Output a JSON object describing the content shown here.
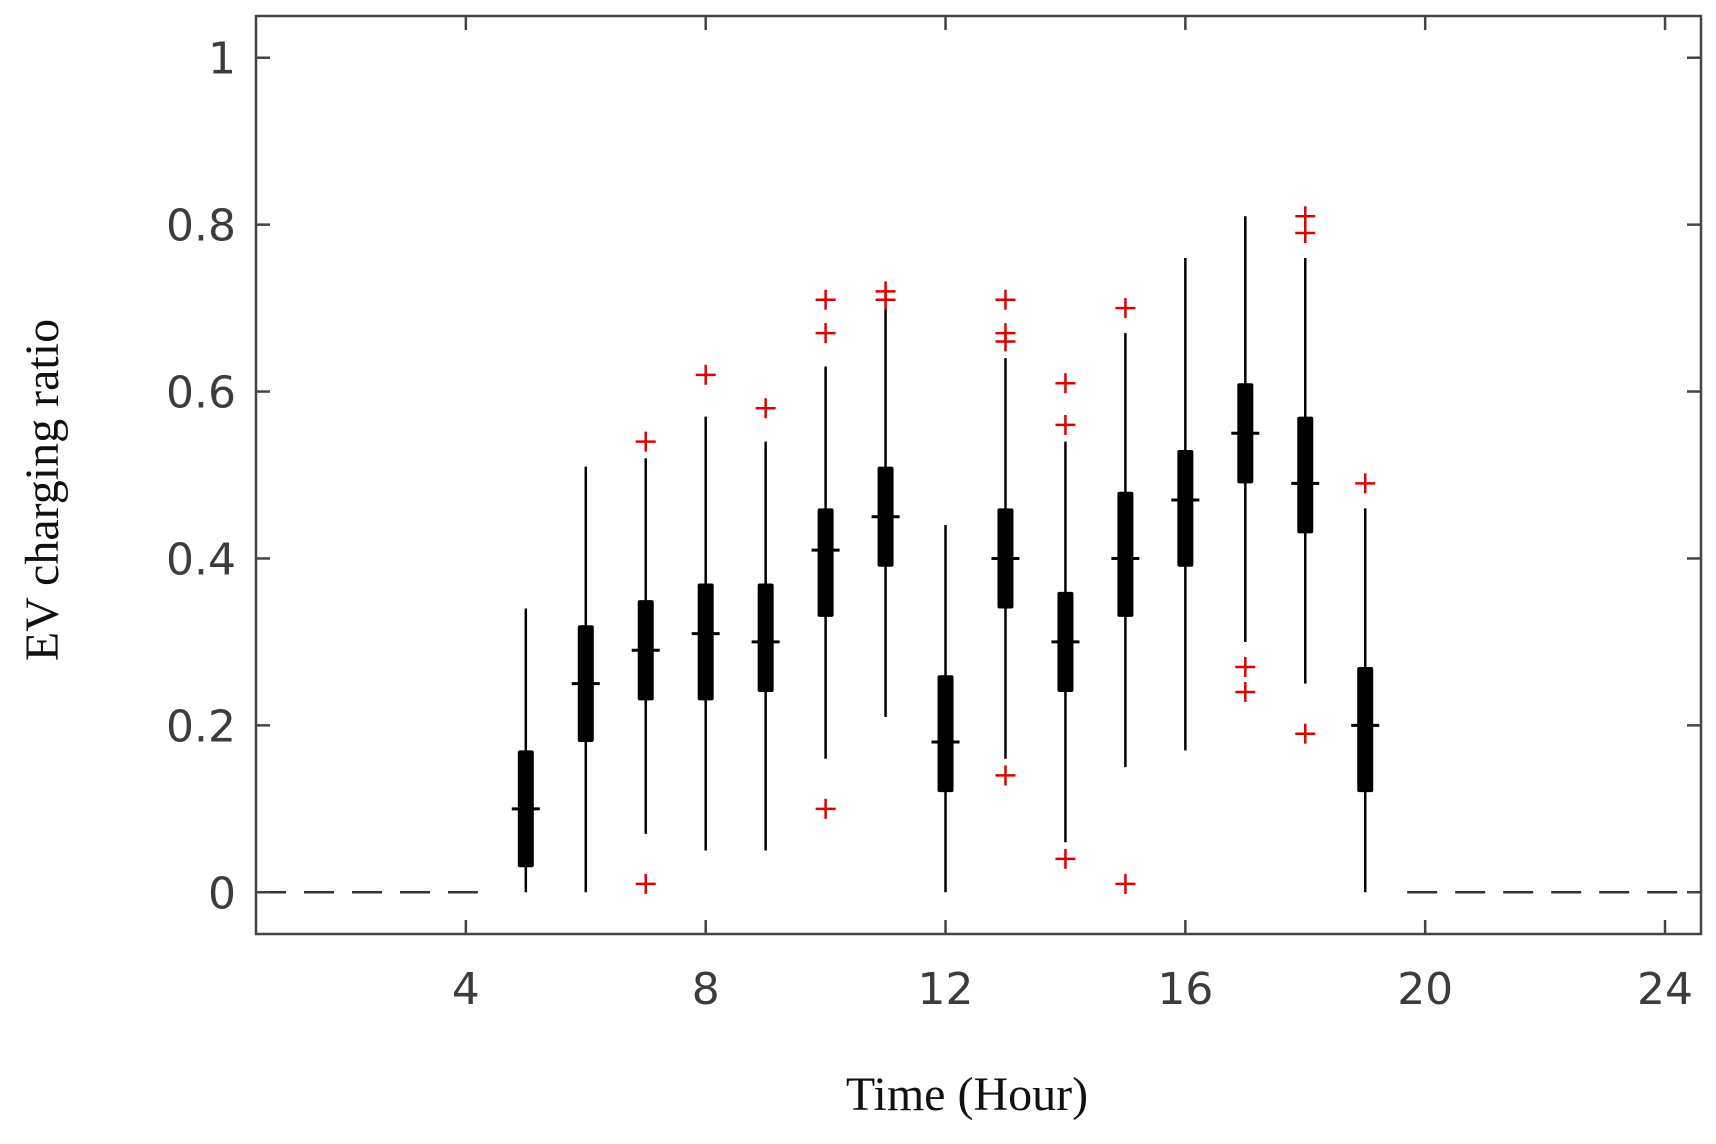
{
  "chart_data": {
    "type": "box",
    "xlabel": "Time (Hour)",
    "ylabel": "EV charging ratio",
    "xlim": [
      0.5,
      24.6
    ],
    "ylim": [
      -0.05,
      1.05
    ],
    "x_ticks": [
      4,
      8,
      12,
      16,
      20,
      24
    ],
    "y_ticks": [
      0,
      0.2,
      0.4,
      0.6,
      0.8,
      1
    ],
    "y_tick_labels": [
      "0",
      "0.2",
      "0.4",
      "0.6",
      "0.8",
      "1"
    ],
    "grid": false,
    "zero_dashed_segments": [
      [
        0.5,
        4.2
      ],
      [
        19.7,
        24.6
      ]
    ],
    "colors": {
      "box": "#000000",
      "whisker": "#000000",
      "outlier": "#e00000",
      "axis": "#444444"
    },
    "boxes": [
      {
        "x": 5,
        "whisker_low": 0.0,
        "q1": 0.03,
        "median": 0.1,
        "q3": 0.17,
        "whisker_high": 0.34,
        "outliers": []
      },
      {
        "x": 6,
        "whisker_low": 0.0,
        "q1": 0.18,
        "median": 0.25,
        "q3": 0.32,
        "whisker_high": 0.51,
        "outliers": []
      },
      {
        "x": 7,
        "whisker_low": 0.07,
        "q1": 0.23,
        "median": 0.29,
        "q3": 0.35,
        "whisker_high": 0.52,
        "outliers": [
          0.01,
          0.54
        ]
      },
      {
        "x": 8,
        "whisker_low": 0.05,
        "q1": 0.23,
        "median": 0.31,
        "q3": 0.37,
        "whisker_high": 0.57,
        "outliers": [
          0.62
        ]
      },
      {
        "x": 9,
        "whisker_low": 0.05,
        "q1": 0.24,
        "median": 0.3,
        "q3": 0.37,
        "whisker_high": 0.54,
        "outliers": [
          0.58
        ]
      },
      {
        "x": 10,
        "whisker_low": 0.16,
        "q1": 0.33,
        "median": 0.41,
        "q3": 0.46,
        "whisker_high": 0.63,
        "outliers": [
          0.1,
          0.67,
          0.71
        ]
      },
      {
        "x": 11,
        "whisker_low": 0.21,
        "q1": 0.39,
        "median": 0.45,
        "q3": 0.51,
        "whisker_high": 0.7,
        "outliers": [
          0.71,
          0.72
        ]
      },
      {
        "x": 12,
        "whisker_low": 0.0,
        "q1": 0.12,
        "median": 0.18,
        "q3": 0.26,
        "whisker_high": 0.44,
        "outliers": []
      },
      {
        "x": 13,
        "whisker_low": 0.16,
        "q1": 0.34,
        "median": 0.4,
        "q3": 0.46,
        "whisker_high": 0.64,
        "outliers": [
          0.14,
          0.66,
          0.67,
          0.71
        ]
      },
      {
        "x": 14,
        "whisker_low": 0.06,
        "q1": 0.24,
        "median": 0.3,
        "q3": 0.36,
        "whisker_high": 0.54,
        "outliers": [
          0.04,
          0.56,
          0.61
        ]
      },
      {
        "x": 15,
        "whisker_low": 0.15,
        "q1": 0.33,
        "median": 0.4,
        "q3": 0.48,
        "whisker_high": 0.67,
        "outliers": [
          0.01,
          0.7
        ]
      },
      {
        "x": 16,
        "whisker_low": 0.17,
        "q1": 0.39,
        "median": 0.47,
        "q3": 0.53,
        "whisker_high": 0.76,
        "outliers": []
      },
      {
        "x": 17,
        "whisker_low": 0.3,
        "q1": 0.49,
        "median": 0.55,
        "q3": 0.61,
        "whisker_high": 0.81,
        "outliers": [
          0.24,
          0.27
        ]
      },
      {
        "x": 18,
        "whisker_low": 0.25,
        "q1": 0.43,
        "median": 0.49,
        "q3": 0.57,
        "whisker_high": 0.76,
        "outliers": [
          0.19,
          0.79,
          0.81
        ]
      },
      {
        "x": 19,
        "whisker_low": 0.0,
        "q1": 0.12,
        "median": 0.2,
        "q3": 0.27,
        "whisker_high": 0.46,
        "outliers": [
          0.49
        ]
      }
    ]
  }
}
